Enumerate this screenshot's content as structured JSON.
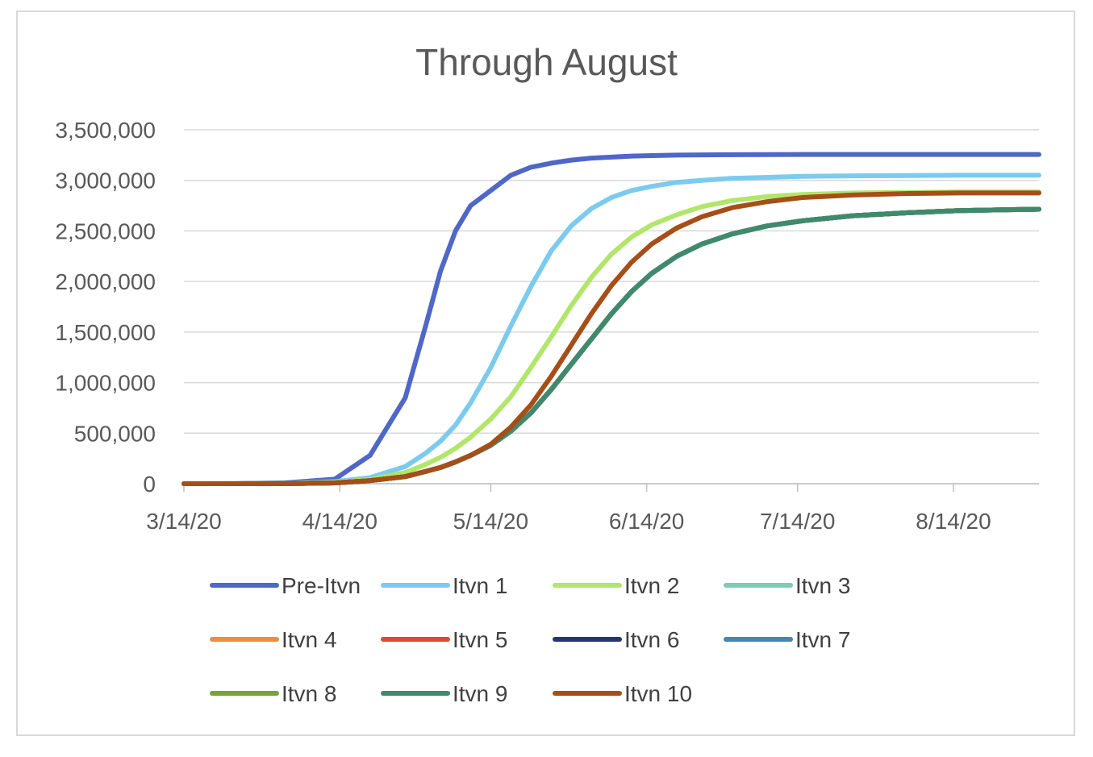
{
  "chart_data": {
    "type": "line",
    "title": "Through August",
    "xlabel": "",
    "ylabel": "",
    "x_ticks": [
      "3/14/20",
      "4/14/20",
      "5/14/20",
      "6/14/20",
      "7/14/20",
      "8/14/20"
    ],
    "x_range": [
      "3/14/20",
      "8/31/20"
    ],
    "y_ticks": [
      "0",
      "500,000",
      "1,000,000",
      "1,500,000",
      "2,000,000",
      "2,500,000",
      "3,000,000",
      "3,500,000"
    ],
    "ylim": [
      0,
      3500000
    ],
    "grid": "horizontal",
    "legend_position": "bottom",
    "x": [
      "3/14/20",
      "3/24/20",
      "4/3/20",
      "4/13/20",
      "4/20/20",
      "4/27/20",
      "5/1/20",
      "5/4/20",
      "5/7/20",
      "5/10/20",
      "5/14/20",
      "5/18/20",
      "5/22/20",
      "5/26/20",
      "5/30/20",
      "6/3/20",
      "6/7/20",
      "6/11/20",
      "6/15/20",
      "6/20/20",
      "6/25/20",
      "7/1/20",
      "7/8/20",
      "7/15/20",
      "7/25/20",
      "8/5/20",
      "8/15/20",
      "8/31/20"
    ],
    "series": [
      {
        "name": "Pre-Itvn",
        "color": "#4f67c6",
        "values": [
          0,
          1000,
          8000,
          45000,
          280000,
          850000,
          1550000,
          2100000,
          2500000,
          2750000,
          2900000,
          3050000,
          3130000,
          3170000,
          3200000,
          3220000,
          3230000,
          3240000,
          3245000,
          3250000,
          3252000,
          3254000,
          3255000,
          3256000,
          3256000,
          3256000,
          3256000,
          3256000
        ]
      },
      {
        "name": "Itvn 1",
        "color": "#7ccbef",
        "values": [
          0,
          0,
          3000,
          20000,
          60000,
          170000,
          300000,
          420000,
          580000,
          800000,
          1150000,
          1560000,
          1950000,
          2300000,
          2550000,
          2720000,
          2830000,
          2900000,
          2940000,
          2980000,
          3000000,
          3020000,
          3030000,
          3040000,
          3045000,
          3048000,
          3050000,
          3050000
        ]
      },
      {
        "name": "Itvn 2",
        "color": "#b1e66a",
        "values": [
          0,
          0,
          2000,
          12000,
          40000,
          110000,
          190000,
          260000,
          350000,
          460000,
          640000,
          860000,
          1150000,
          1450000,
          1760000,
          2040000,
          2270000,
          2440000,
          2560000,
          2660000,
          2740000,
          2800000,
          2840000,
          2860000,
          2875000,
          2880000,
          2885000,
          2885000
        ]
      },
      {
        "name": "Itvn 3",
        "color": "#7dccb3",
        "values": [
          0,
          0,
          1000,
          8000,
          30000,
          70000,
          120000,
          160000,
          215000,
          280000,
          380000,
          520000,
          700000,
          930000,
          1180000,
          1430000,
          1680000,
          1900000,
          2080000,
          2250000,
          2370000,
          2470000,
          2550000,
          2600000,
          2650000,
          2680000,
          2700000,
          2715000
        ]
      },
      {
        "name": "Itvn 4",
        "color": "#f08c3a",
        "values": [
          0,
          0,
          1000,
          8000,
          30000,
          70000,
          120000,
          160000,
          215000,
          280000,
          380000,
          520000,
          700000,
          930000,
          1180000,
          1430000,
          1680000,
          1900000,
          2080000,
          2250000,
          2370000,
          2470000,
          2550000,
          2600000,
          2650000,
          2680000,
          2700000,
          2715000
        ]
      },
      {
        "name": "Itvn 5",
        "color": "#e14b2c",
        "values": [
          0,
          0,
          1000,
          8000,
          30000,
          70000,
          120000,
          160000,
          215000,
          280000,
          380000,
          520000,
          700000,
          930000,
          1180000,
          1430000,
          1680000,
          1900000,
          2080000,
          2250000,
          2370000,
          2470000,
          2550000,
          2600000,
          2650000,
          2680000,
          2700000,
          2715000
        ]
      },
      {
        "name": "Itvn 6",
        "color": "#263377",
        "values": [
          0,
          0,
          1000,
          8000,
          30000,
          70000,
          120000,
          160000,
          215000,
          280000,
          380000,
          520000,
          700000,
          930000,
          1180000,
          1430000,
          1680000,
          1900000,
          2080000,
          2250000,
          2370000,
          2470000,
          2550000,
          2600000,
          2650000,
          2680000,
          2700000,
          2715000
        ]
      },
      {
        "name": "Itvn 7",
        "color": "#3c8ab5",
        "values": [
          0,
          0,
          1000,
          8000,
          30000,
          70000,
          120000,
          160000,
          215000,
          280000,
          380000,
          520000,
          700000,
          930000,
          1180000,
          1430000,
          1680000,
          1900000,
          2080000,
          2250000,
          2370000,
          2470000,
          2550000,
          2600000,
          2650000,
          2680000,
          2700000,
          2715000
        ]
      },
      {
        "name": "Itvn 8",
        "color": "#78a33a",
        "values": [
          0,
          0,
          1000,
          8000,
          30000,
          70000,
          120000,
          160000,
          215000,
          280000,
          380000,
          520000,
          700000,
          930000,
          1180000,
          1430000,
          1680000,
          1900000,
          2080000,
          2250000,
          2370000,
          2470000,
          2550000,
          2600000,
          2650000,
          2680000,
          2700000,
          2715000
        ]
      },
      {
        "name": "Itvn 9",
        "color": "#3f8a6e",
        "values": [
          0,
          0,
          1000,
          8000,
          30000,
          70000,
          120000,
          160000,
          215000,
          280000,
          380000,
          520000,
          700000,
          930000,
          1180000,
          1430000,
          1680000,
          1900000,
          2080000,
          2250000,
          2370000,
          2470000,
          2550000,
          2600000,
          2650000,
          2680000,
          2700000,
          2715000
        ]
      },
      {
        "name": "Itvn 10",
        "color": "#a64e17",
        "values": [
          0,
          0,
          1000,
          8000,
          30000,
          70000,
          120000,
          160000,
          215000,
          280000,
          390000,
          560000,
          780000,
          1060000,
          1370000,
          1680000,
          1960000,
          2190000,
          2370000,
          2530000,
          2640000,
          2730000,
          2790000,
          2830000,
          2855000,
          2870000,
          2875000,
          2875000
        ]
      }
    ]
  }
}
